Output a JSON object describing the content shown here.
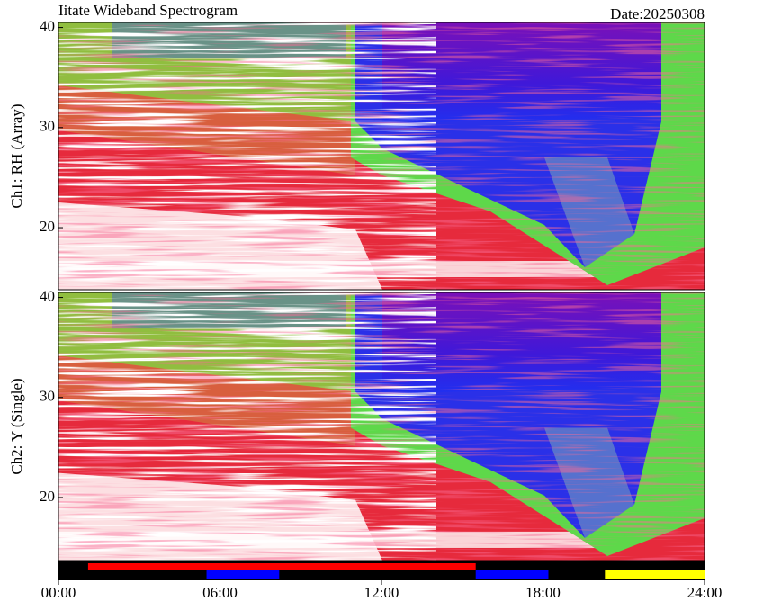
{
  "chart_data": {
    "type": "spectrogram",
    "title": "Iitate Wideband Spectrogram",
    "date": "Date:20250308",
    "xlim": [
      0,
      24
    ],
    "xticks": [
      {
        "value": 0,
        "label": "00:00"
      },
      {
        "value": 6,
        "label": "06:00"
      },
      {
        "value": 12,
        "label": "12:00"
      },
      {
        "value": 18,
        "label": "18:00"
      },
      {
        "value": 24,
        "label": "24:00"
      }
    ],
    "panels": [
      {
        "ylabel": "Ch1: RH (Array)",
        "ylim": [
          13.8,
          40.5
        ],
        "yticks": [
          20,
          30,
          40
        ]
      },
      {
        "ylabel": "Ch2: Y (Single)",
        "ylim": [
          13.7,
          40.5
        ],
        "yticks": [
          20,
          30,
          40
        ]
      }
    ],
    "lanes": [
      [
        {
          "color": "#ff0000",
          "start": 1.1,
          "end": 15.5
        }
      ],
      [
        {
          "color": "#0000ff",
          "start": 5.5,
          "end": 8.2
        },
        {
          "color": "#0000ff",
          "start": 15.5,
          "end": 18.2
        },
        {
          "color": "#ffff00",
          "start": 20.3,
          "end": 24
        }
      ]
    ]
  }
}
